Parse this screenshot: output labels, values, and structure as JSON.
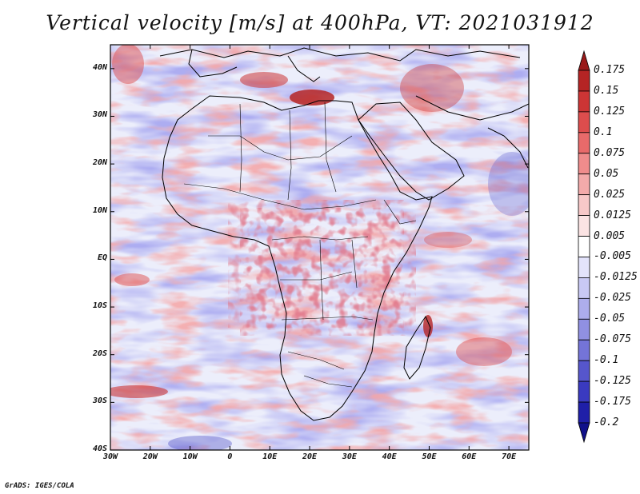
{
  "title": "Vertical velocity [m/s] at 400hPa, VT: 2021031912",
  "credit": "GrADS: IGES/COLA",
  "map": {
    "lat_labels": [
      "40N",
      "30N",
      "20N",
      "10N",
      "EQ",
      "10S",
      "20S",
      "30S",
      "40S"
    ],
    "lon_labels": [
      "30W",
      "20W",
      "10W",
      "0",
      "10E",
      "20E",
      "30E",
      "40E",
      "50E",
      "60E",
      "70E"
    ],
    "lon_range": [
      -30,
      75
    ],
    "lat_range": [
      -40,
      45
    ]
  },
  "colorbar": {
    "labels": [
      "0.175",
      "0.15",
      "0.125",
      "0.1",
      "0.075",
      "0.05",
      "0.025",
      "0.0125",
      "0.005",
      "-0.005",
      "-0.0125",
      "-0.025",
      "-0.05",
      "-0.075",
      "-0.1",
      "-0.125",
      "-0.175",
      "-0.2"
    ],
    "colors": [
      "#9a1a1a",
      "#b52424",
      "#cc3535",
      "#dd4d4d",
      "#e86a6a",
      "#ef8c8c",
      "#f3aaaa",
      "#f7c8c8",
      "#fbe3e3",
      "#ffffff",
      "#e3e3fb",
      "#c9c9f4",
      "#adadec",
      "#9090e2",
      "#7474d8",
      "#5656cc",
      "#3a3ac0",
      "#1f1fa8",
      "#10108a"
    ]
  },
  "colors": {
    "positive": "#d84545",
    "negative": "#6262d6",
    "coast": "#000000"
  }
}
